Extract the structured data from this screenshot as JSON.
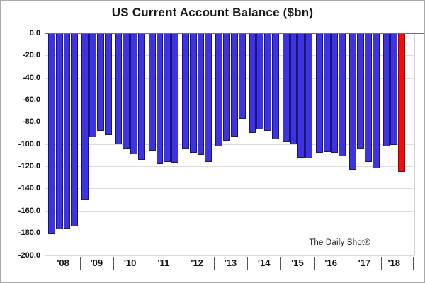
{
  "chart_data": {
    "type": "bar",
    "title": "US Current Account Balance ($bn)",
    "watermark": "The Daily Shot®",
    "y_axis": {
      "min": -200,
      "max": 0,
      "tick_step": 20,
      "tick_labels": [
        "0.0",
        "-20.0",
        "-40.0",
        "-60.0",
        "-80.0",
        "-100.0",
        "-120.0",
        "-140.0",
        "-160.0",
        "-180.0",
        "-200.0"
      ]
    },
    "x_axis": {
      "separator_glyph": "|",
      "year_labels": [
        "'08",
        "'09",
        "'10",
        "'11",
        "'12",
        "'13",
        "'14",
        "'15",
        "'16",
        "'17",
        "'18"
      ]
    },
    "groups": [
      {
        "year": "'08",
        "values": [
          -181,
          -177,
          -176,
          -174
        ]
      },
      {
        "year": "'09",
        "values": [
          -150,
          -94,
          -88,
          -92
        ]
      },
      {
        "year": "'10",
        "values": [
          -100,
          -104,
          -109,
          -114
        ]
      },
      {
        "year": "'11",
        "values": [
          -106,
          -118,
          -116,
          -117
        ]
      },
      {
        "year": "'12",
        "values": [
          -104,
          -108,
          -110,
          -116
        ]
      },
      {
        "year": "'13",
        "values": [
          -102,
          -97,
          -93,
          -77
        ]
      },
      {
        "year": "'14",
        "values": [
          -90,
          -87,
          -88,
          -96
        ]
      },
      {
        "year": "'15",
        "values": [
          -98,
          -100,
          -112,
          -113
        ]
      },
      {
        "year": "'16",
        "values": [
          -108,
          -107,
          -108,
          -111
        ]
      },
      {
        "year": "'17",
        "values": [
          -123,
          -104,
          -116,
          -122
        ]
      },
      {
        "year": "'18",
        "values": [
          -102,
          -101,
          -125
        ]
      }
    ],
    "highlight": {
      "group_index": 10,
      "bar_index": 2
    },
    "colors": {
      "bar_fill": "#3e33e0",
      "bar_border": "#181478",
      "highlight_fill": "#ef0e0e",
      "highlight_border": "#8f0505",
      "grid": "#dcdcdc",
      "zero_line": "#6f6f6f",
      "text": "#1a1a1a"
    },
    "legend": null,
    "grid": "horizontal-only"
  }
}
